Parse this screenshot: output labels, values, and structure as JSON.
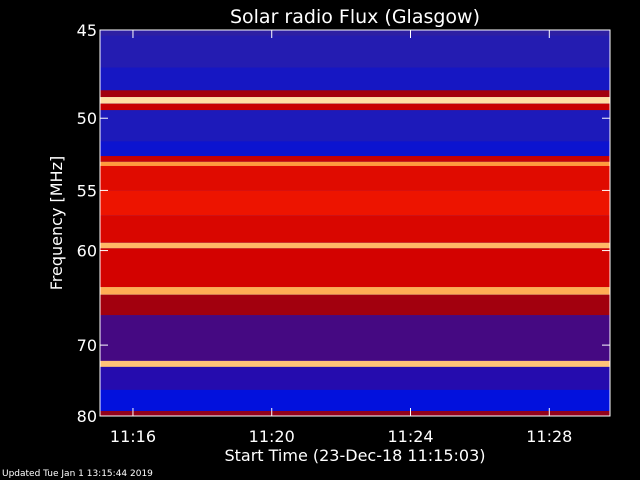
{
  "chart_data": {
    "type": "heatmap",
    "title": "Solar radio Flux (Glasgow)",
    "xlabel": "Start Time (23-Dec-18 11:15:03)",
    "ylabel": "Frequency [MHz]",
    "x_range": [
      "11:15:03",
      "11:29:45"
    ],
    "ylim": [
      45,
      80
    ],
    "y_scale": "reciprocal",
    "x_ticks": [
      "11:16",
      "11:20",
      "11:24",
      "11:28"
    ],
    "y_ticks": [
      45,
      50,
      55,
      60,
      70,
      80
    ],
    "grid": false,
    "colormap": [
      "#1a0040",
      "#3020a0",
      "#0010e0",
      "#9a0010",
      "#d00000",
      "#ff2000",
      "#ffa040",
      "#fff0c0"
    ],
    "bands": [
      {
        "from": 45.0,
        "to": 45.3,
        "level": 0.15
      },
      {
        "from": 45.3,
        "to": 47.0,
        "level": 0.18
      },
      {
        "from": 47.0,
        "to": 48.3,
        "level": 0.22
      },
      {
        "from": 48.3,
        "to": 48.7,
        "level": 0.45
      },
      {
        "from": 48.7,
        "to": 49.1,
        "level": 0.97
      },
      {
        "from": 49.1,
        "to": 49.5,
        "level": 0.55
      },
      {
        "from": 49.5,
        "to": 51.5,
        "level": 0.2
      },
      {
        "from": 51.5,
        "to": 52.5,
        "level": 0.25
      },
      {
        "from": 52.5,
        "to": 52.9,
        "level": 0.55
      },
      {
        "from": 52.9,
        "to": 53.2,
        "level": 0.85
      },
      {
        "from": 53.2,
        "to": 55.0,
        "level": 0.62
      },
      {
        "from": 55.0,
        "to": 57.0,
        "level": 0.66
      },
      {
        "from": 57.0,
        "to": 59.3,
        "level": 0.6
      },
      {
        "from": 59.3,
        "to": 59.8,
        "level": 0.9
      },
      {
        "from": 59.8,
        "to": 63.5,
        "level": 0.58
      },
      {
        "from": 63.5,
        "to": 64.3,
        "level": 0.88
      },
      {
        "from": 64.3,
        "to": 66.5,
        "level": 0.45
      },
      {
        "from": 66.5,
        "to": 72.0,
        "level": 0.35
      },
      {
        "from": 72.0,
        "to": 72.8,
        "level": 0.92
      },
      {
        "from": 72.8,
        "to": 76.0,
        "level": 0.32
      },
      {
        "from": 76.0,
        "to": 79.2,
        "level": 0.28
      },
      {
        "from": 79.2,
        "to": 80.0,
        "level": 0.42
      }
    ]
  },
  "footer": "Updated Tue Jan  1 13:15:44 2019"
}
